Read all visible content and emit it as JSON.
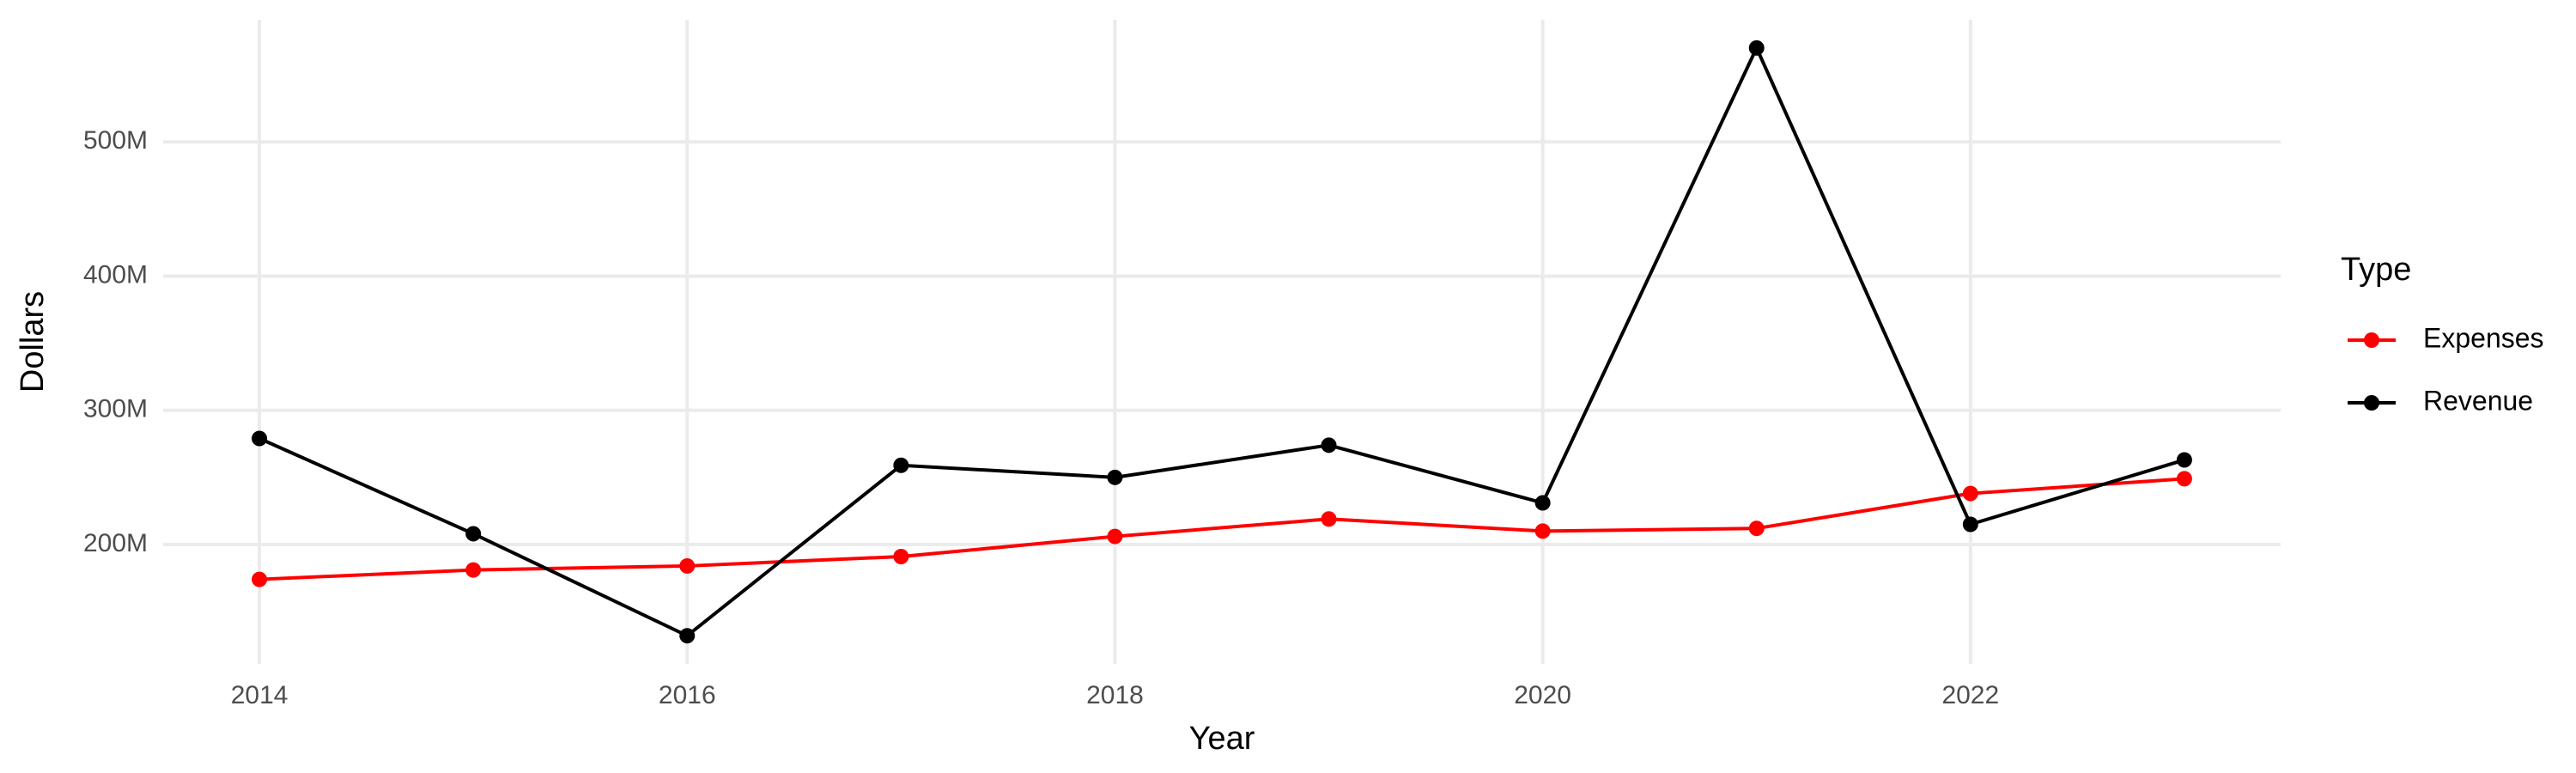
{
  "chart_data": {
    "type": "line",
    "x_label": "Year",
    "y_label": "Dollars",
    "legend_title": "Type",
    "x": [
      2014,
      2015,
      2016,
      2017,
      2018,
      2019,
      2020,
      2021,
      2022,
      2023
    ],
    "series": [
      {
        "name": "Expenses",
        "color": "#ff0000",
        "values": [
          174000000,
          181000000,
          184000000,
          191000000,
          206000000,
          219000000,
          210000000,
          212000000,
          238000000,
          249000000
        ]
      },
      {
        "name": "Revenue",
        "color": "#000000",
        "values": [
          279000000,
          208000000,
          132000000,
          259000000,
          250000000,
          274000000,
          231000000,
          570000000,
          215000000,
          263000000
        ]
      }
    ],
    "xlim": [
      2013.55,
      2023.45
    ],
    "xticks": [
      2014,
      2016,
      2018,
      2020,
      2022
    ],
    "ylim": [
      111000000,
      591000000
    ],
    "yticks": [
      {
        "value": 200000000,
        "label": "200M"
      },
      {
        "value": 300000000,
        "label": "300M"
      },
      {
        "value": 400000000,
        "label": "400M"
      },
      {
        "value": 500000000,
        "label": "500M"
      }
    ],
    "grid": true,
    "legend": "right"
  }
}
